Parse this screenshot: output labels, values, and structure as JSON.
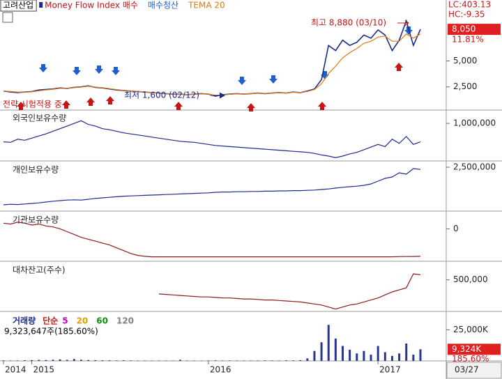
{
  "chart_data": [
    {
      "type": "line",
      "title": "고려산업",
      "categories": [
        "2014",
        null,
        null,
        null,
        "2015",
        null,
        null,
        null,
        null,
        null,
        null,
        null,
        null,
        null,
        null,
        null,
        null,
        null,
        null,
        null,
        null,
        null,
        null,
        null,
        null,
        null,
        null,
        null,
        null,
        "2016",
        null,
        null,
        null,
        null,
        null,
        null,
        null,
        null,
        null,
        null,
        null,
        null,
        null,
        null,
        null,
        null,
        null,
        null,
        null,
        null,
        null,
        null,
        null,
        "2017",
        null,
        null,
        null,
        null,
        null,
        null
      ],
      "last_date": "03/27",
      "series": [
        {
          "name": "고려산업",
          "color": "#1a2a8a",
          "values": [
            2100,
            2000,
            1950,
            2000,
            2050,
            2200,
            2250,
            2300,
            2400,
            2350,
            2450,
            2500,
            2600,
            2450,
            2400,
            2300,
            2200,
            2150,
            2100,
            2050,
            2000,
            1950,
            1900,
            1850,
            1800,
            1800,
            1750,
            1800,
            1850,
            1800,
            1600,
            1750,
            1800,
            1850,
            1800,
            1850,
            1900,
            1850,
            1900,
            1950,
            1900,
            2000,
            1950,
            2100,
            2300,
            3200,
            6500,
            6000,
            7000,
            6500,
            6800,
            7500,
            7200,
            8000,
            7500,
            6000,
            7000,
            8880,
            6500,
            8050
          ]
        },
        {
          "name": "TEMA 20",
          "color": "#e07a10",
          "values": [
            2100,
            2050,
            2000,
            1990,
            2020,
            2120,
            2200,
            2270,
            2360,
            2360,
            2420,
            2480,
            2560,
            2480,
            2420,
            2330,
            2240,
            2170,
            2110,
            2060,
            2010,
            1960,
            1910,
            1860,
            1810,
            1800,
            1760,
            1790,
            1830,
            1810,
            1680,
            1720,
            1780,
            1830,
            1810,
            1840,
            1880,
            1860,
            1890,
            1930,
            1910,
            1980,
            1960,
            2060,
            2250,
            2800,
            3800,
            4500,
            5300,
            5800,
            6200,
            6700,
            6900,
            7300,
            7400,
            6900,
            6900,
            7600,
            7200,
            7600
          ]
        }
      ],
      "signals": [
        {
          "name": "Money Flow Index 매수",
          "color": "#c81414"
        },
        {
          "name": "매수청산",
          "color": "#1f5fd0"
        }
      ],
      "ylim": [
        330,
        9670
      ],
      "yticks": [
        {
          "value": 2500,
          "label": "2,500"
        },
        {
          "value": 5000,
          "label": "5,000"
        }
      ],
      "last_price": {
        "value": 8050,
        "label": "8,050"
      },
      "change": "11.81%",
      "lc": "LC:403.13",
      "hc": "HC:-9.35",
      "high_label": "최고 8,880 (03/10)",
      "low_label": "최저 1,600 (02/12)",
      "status": "전략 시험적용 중"
    },
    {
      "type": "line",
      "title": "외국인보유수량",
      "series": [
        {
          "name": "외국인보유수량",
          "color": "#1a2a8a",
          "values": [
            650000,
            640000,
            700000,
            680000,
            720000,
            760000,
            800000,
            850000,
            900000,
            950000,
            1000000,
            1050000,
            980000,
            950000,
            900000,
            880000,
            850000,
            820000,
            800000,
            780000,
            760000,
            740000,
            720000,
            700000,
            680000,
            660000,
            650000,
            640000,
            620000,
            600000,
            580000,
            570000,
            560000,
            550000,
            540000,
            530000,
            520000,
            510000,
            500000,
            490000,
            480000,
            470000,
            460000,
            450000,
            430000,
            400000,
            380000,
            350000,
            380000,
            420000,
            450000,
            500000,
            550000,
            600000,
            560000,
            700000,
            620000,
            750000,
            600000,
            650000
          ]
        }
      ],
      "ylim": [
        300000,
        1200000
      ],
      "yticks": [
        {
          "value": 1000000,
          "label": "1,000,000"
        }
      ]
    },
    {
      "type": "line",
      "title": "개인보유수량",
      "series": [
        {
          "name": "개인보유수량",
          "color": "#1a2a8a",
          "values": [
            1150000,
            1170000,
            1160000,
            1180000,
            1200000,
            1220000,
            1250000,
            1280000,
            1300000,
            1320000,
            1330000,
            1320000,
            1350000,
            1380000,
            1400000,
            1420000,
            1440000,
            1460000,
            1470000,
            1480000,
            1490000,
            1500000,
            1510000,
            1520000,
            1530000,
            1540000,
            1550000,
            1560000,
            1570000,
            1580000,
            1600000,
            1610000,
            1610000,
            1620000,
            1620000,
            1630000,
            1630000,
            1640000,
            1640000,
            1650000,
            1650000,
            1660000,
            1660000,
            1670000,
            1680000,
            1700000,
            1720000,
            1750000,
            1780000,
            1800000,
            1820000,
            1850000,
            1900000,
            2000000,
            2100000,
            2150000,
            2300000,
            2250000,
            2450000,
            2420000
          ]
        }
      ],
      "ylim": [
        1000000,
        2600000
      ],
      "yticks": [
        {
          "value": 2500000,
          "label": "2,500,000"
        }
      ]
    },
    {
      "type": "line",
      "title": "기관보유수량",
      "series": [
        {
          "name": "기관보유수량",
          "color": "#8a1a1a",
          "values": [
            60000,
            50000,
            70000,
            60000,
            40000,
            50000,
            30000,
            20000,
            0,
            -30000,
            -60000,
            -90000,
            -110000,
            -130000,
            -150000,
            -170000,
            -200000,
            -230000,
            -260000,
            -280000,
            -290000,
            -295000,
            -295000,
            -295000,
            -295000,
            -295000,
            -295000,
            -295000,
            -295000,
            -295000,
            -295000,
            -295000,
            -295000,
            -295000,
            -295000,
            -295000,
            -295000,
            -295000,
            -295000,
            -295000,
            -295000,
            -295000,
            -295000,
            -295000,
            -295000,
            -295000,
            -295000,
            -295000,
            -295000,
            -295000,
            -295000,
            -295000,
            -295000,
            -295000,
            -295000,
            -295000,
            -293000,
            -292000,
            -291000,
            -290000
          ]
        }
      ],
      "ylim": [
        -320000,
        150000
      ],
      "yticks": [
        0
      ]
    },
    {
      "type": "line",
      "title": "대차잔고(주수)",
      "series": [
        {
          "name": "대차잔고(주수)",
          "color": "#8a1a1a",
          "values": [
            null,
            null,
            null,
            null,
            null,
            null,
            null,
            null,
            null,
            null,
            null,
            null,
            null,
            null,
            null,
            null,
            null,
            null,
            null,
            null,
            null,
            null,
            360000,
            355000,
            350000,
            345000,
            340000,
            335000,
            330000,
            330000,
            325000,
            320000,
            320000,
            315000,
            310000,
            310000,
            305000,
            300000,
            300000,
            295000,
            290000,
            285000,
            280000,
            270000,
            260000,
            250000,
            230000,
            210000,
            230000,
            250000,
            260000,
            280000,
            300000,
            320000,
            350000,
            380000,
            400000,
            420000,
            560000,
            550000
          ]
        }
      ],
      "ylim": [
        200000,
        650000
      ],
      "yticks": [
        {
          "value": 500000,
          "label": "500,000"
        }
      ]
    },
    {
      "type": "bar",
      "title": "거래량",
      "ma_label": "단순",
      "ma": [
        {
          "name": "5",
          "color": "#c000c0"
        },
        {
          "name": "20",
          "color": "#e0a000"
        },
        {
          "name": "60",
          "color": "#109010"
        },
        {
          "name": "120",
          "color": "#808080"
        }
      ],
      "volume_text": "9,323,647주(185.60%)",
      "color": "#2a3590",
      "values": [
        400000,
        300000,
        350000,
        500000,
        600000,
        800000,
        700000,
        900000,
        1200000,
        800000,
        1500000,
        900000,
        700000,
        600000,
        500000,
        450000,
        400000,
        500000,
        350000,
        300000,
        300000,
        250000,
        300000,
        280000,
        260000,
        900000,
        300000,
        250000,
        200000,
        300000,
        400000,
        300000,
        350000,
        300000,
        280000,
        300000,
        320000,
        400000,
        350000,
        300000,
        450000,
        400000,
        600000,
        2000000,
        8000000,
        15000000,
        29000000,
        18000000,
        12000000,
        9000000,
        6000000,
        8000000,
        5000000,
        12000000,
        7000000,
        4000000,
        6000000,
        14000000,
        5000000,
        9323647
      ],
      "ylim": [
        0,
        37000000
      ],
      "yticks": [
        {
          "value": 25000000,
          "label": "25,000K"
        }
      ],
      "last_label": "9,324K",
      "ratio": "185.60%"
    }
  ]
}
